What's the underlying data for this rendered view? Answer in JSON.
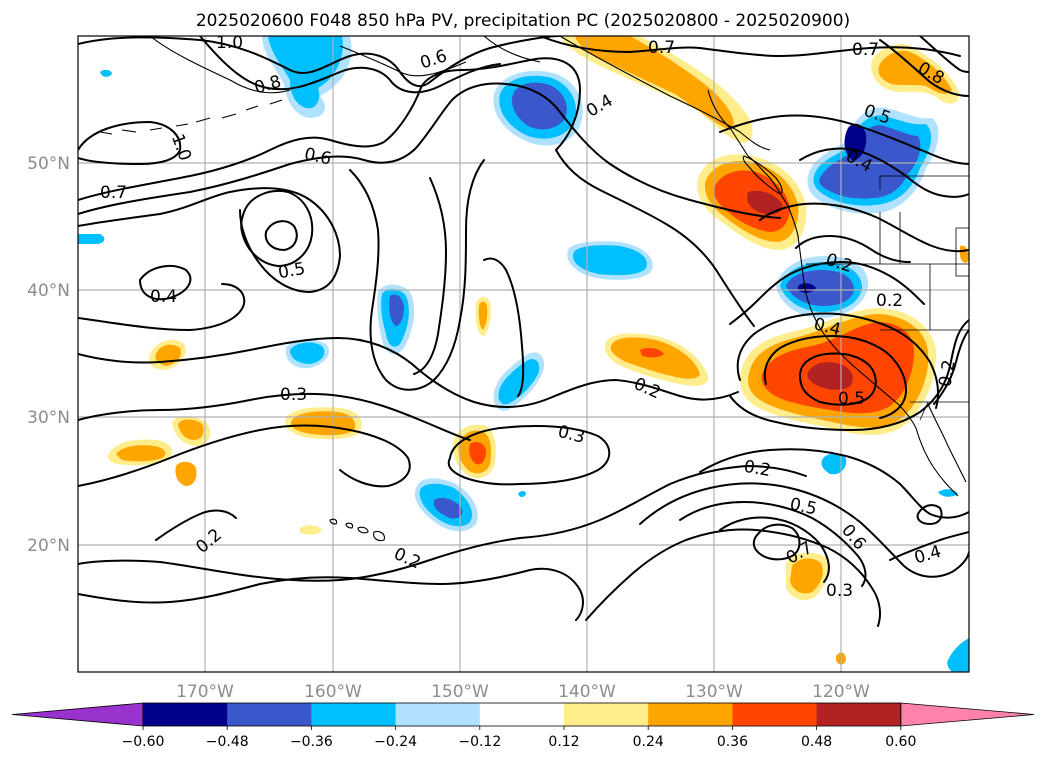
{
  "title": "2025020600 F048 850 hPa PV, precipitation PC (2025020800 - 2025020900)",
  "lon_labels": [
    "170°W",
    "160°W",
    "150°W",
    "140°W",
    "130°W",
    "120°W"
  ],
  "lat_labels": [
    "50°N",
    "40°N",
    "30°N",
    "20°N"
  ],
  "colorbar": {
    "ticks": [
      "−0.60",
      "−0.48",
      "−0.36",
      "−0.24",
      "−0.12",
      "0.12",
      "0.24",
      "0.36",
      "0.48",
      "0.60"
    ],
    "colors": [
      "#9a32cd",
      "#00008b",
      "#3a57cc",
      "#00bfff",
      "#b0e2ff",
      "#ffffff",
      "#ffec8b",
      "#ffa500",
      "#ff4500",
      "#b22222",
      "#ff82ab"
    ]
  },
  "contour_labels": [
    "1.0",
    "0.6",
    "0.7",
    "0.7",
    "0.8",
    "0.8",
    "1.0",
    "0.4",
    "0.5",
    "0.6",
    "0.4",
    "0.7",
    "0.5",
    "0.4",
    "0.2",
    "0.2",
    "0.4",
    "0.2",
    "0.2",
    "0.3",
    "0.5",
    "0.3",
    "0.2",
    "0.2",
    "0.5",
    "0.6",
    "0.7",
    "0.4",
    "0.3",
    "0.2"
  ],
  "map": {
    "lon_range": [
      "180°W",
      "110°W"
    ],
    "lat_range": [
      "10°N",
      "60°N"
    ]
  }
}
